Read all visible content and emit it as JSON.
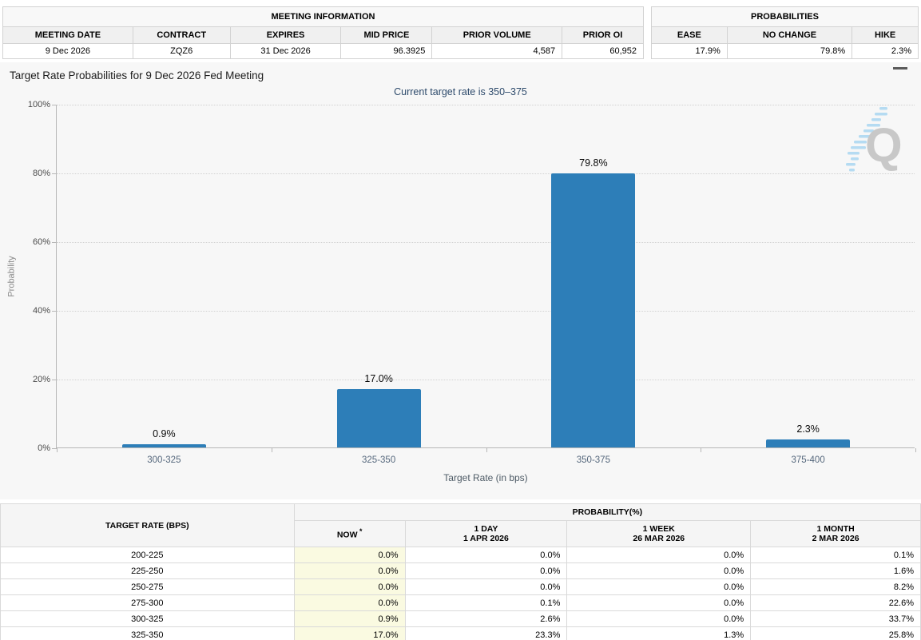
{
  "meeting_info": {
    "title": "MEETING INFORMATION",
    "columns": [
      "MEETING DATE",
      "CONTRACT",
      "EXPIRES",
      "MID PRICE",
      "PRIOR VOLUME",
      "PRIOR OI"
    ],
    "values": [
      "9 Dec 2026",
      "ZQZ6",
      "31 Dec 2026",
      "96.3925",
      "4,587",
      "60,952"
    ]
  },
  "probabilities_summary": {
    "title": "PROBABILITIES",
    "columns": [
      "EASE",
      "NO CHANGE",
      "HIKE"
    ],
    "values": [
      "17.9%",
      "79.8%",
      "2.3%"
    ]
  },
  "chart": {
    "title": "Target Rate Probabilities for 9 Dec 2026 Fed Meeting",
    "subtitle": "Current target rate is 350–375",
    "watermark": "Q",
    "menu_icon": "hamburger-menu"
  },
  "chart_data": {
    "type": "bar",
    "categories": [
      "300-325",
      "325-350",
      "350-375",
      "375-400"
    ],
    "values": [
      0.9,
      17.0,
      79.8,
      2.3
    ],
    "bar_labels": [
      "0.9%",
      "17.0%",
      "79.8%",
      "2.3%"
    ],
    "title": "Target Rate Probabilities for 9 Dec 2026 Fed Meeting",
    "subtitle": "Current target rate is 350–375",
    "xlabel": "Target Rate (in bps)",
    "ylabel": "Probability",
    "ylim": [
      0,
      100
    ],
    "ytick_percents": [
      0,
      20,
      40,
      60,
      80,
      100
    ],
    "ytick_labels": [
      "0%",
      "20%",
      "40%",
      "60%",
      "80%",
      "100%"
    ],
    "bar_color": "#2d7eb8",
    "grid": "dotted-horizontal",
    "legend": "none"
  },
  "bottom_table": {
    "corner_header": "TARGET RATE (BPS)",
    "group_header": "PROBABILITY(%)",
    "columns": [
      {
        "label": "NOW",
        "sup": "*",
        "sub": ""
      },
      {
        "label": "1 DAY",
        "sub": "1 APR 2026"
      },
      {
        "label": "1 WEEK",
        "sub": "26 MAR 2026"
      },
      {
        "label": "1 MONTH",
        "sub": "2 MAR 2026"
      }
    ],
    "rows": [
      {
        "rate": "200-225",
        "now": "0.0%",
        "day": "0.0%",
        "week": "0.0%",
        "month": "0.1%"
      },
      {
        "rate": "225-250",
        "now": "0.0%",
        "day": "0.0%",
        "week": "0.0%",
        "month": "1.6%"
      },
      {
        "rate": "250-275",
        "now": "0.0%",
        "day": "0.0%",
        "week": "0.0%",
        "month": "8.2%"
      },
      {
        "rate": "275-300",
        "now": "0.0%",
        "day": "0.1%",
        "week": "0.0%",
        "month": "22.6%"
      },
      {
        "rate": "300-325",
        "now": "0.9%",
        "day": "2.6%",
        "week": "0.0%",
        "month": "33.7%"
      },
      {
        "rate": "325-350",
        "now": "17.0%",
        "day": "23.3%",
        "week": "1.3%",
        "month": "25.8%"
      }
    ]
  },
  "colors": {
    "bar": "#2d7eb8",
    "chart_background": "#f7f7f7",
    "now_column_highlight": "#fafae1",
    "subtitle_text": "#2d4a6b",
    "watermark_dash": "#aed9f2",
    "watermark_letter": "#c4c4c4"
  }
}
